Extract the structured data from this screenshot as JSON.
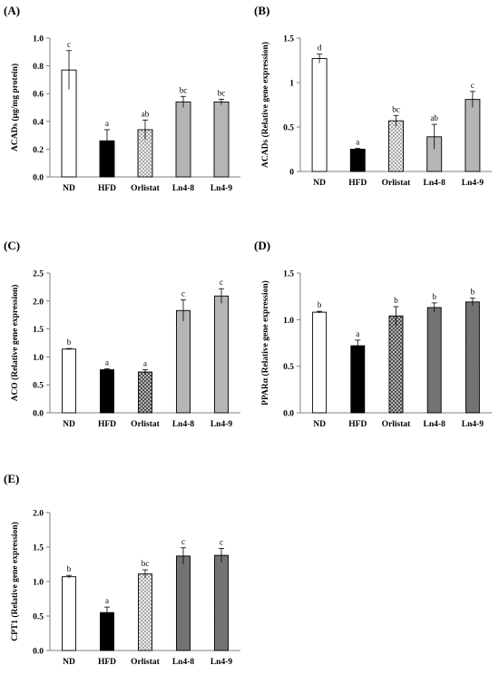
{
  "chart_data": [
    {
      "panel": "(A)",
      "type": "bar",
      "ylabel": "ACADs (μg/mg protein)",
      "ylim": [
        0,
        1.0
      ],
      "yticks": [
        "0.0",
        "0.2",
        "0.4",
        "0.6",
        "0.8",
        "1.0"
      ],
      "categories": [
        "ND",
        "HFD",
        "Orlistat",
        "Ln4-8",
        "Ln4-9"
      ],
      "values": [
        0.77,
        0.26,
        0.34,
        0.54,
        0.54
      ],
      "errors": [
        0.14,
        0.08,
        0.07,
        0.04,
        0.02
      ],
      "letters": [
        "c",
        "a",
        "ab",
        "bc",
        "bc"
      ]
    },
    {
      "panel": "(B)",
      "type": "bar",
      "ylabel": "ACADs (Relative gene expression)",
      "ylim": [
        0,
        1.5
      ],
      "yticks": [
        "0",
        "0.5",
        "1",
        "1.5"
      ],
      "categories": [
        "ND",
        "HFD",
        "Orlistat",
        "Ln4-8",
        "Ln4-9"
      ],
      "values": [
        1.27,
        0.25,
        0.57,
        0.39,
        0.81
      ],
      "errors": [
        0.05,
        0.01,
        0.06,
        0.14,
        0.09
      ],
      "letters": [
        "d",
        "a",
        "bc",
        "ab",
        "c"
      ]
    },
    {
      "panel": "(C)",
      "type": "bar",
      "ylabel": "ACO (Relative gene expression)",
      "ylim": [
        0,
        2.5
      ],
      "yticks": [
        "0.0",
        "0.5",
        "1.0",
        "1.5",
        "2.0",
        "2.5"
      ],
      "categories": [
        "ND",
        "HFD",
        "Orlistat",
        "Ln4-8",
        "Ln4-9"
      ],
      "values": [
        1.14,
        0.77,
        0.73,
        1.83,
        2.09
      ],
      "errors": [
        0.01,
        0.02,
        0.04,
        0.19,
        0.13
      ],
      "letters": [
        "b",
        "a",
        "a",
        "c",
        "c"
      ]
    },
    {
      "panel": "(D)",
      "type": "bar",
      "ylabel": "PPARα (Relative gene expression)",
      "ylim": [
        0,
        1.5
      ],
      "yticks": [
        "0.0",
        "0.5",
        "1.0",
        "1.5"
      ],
      "categories": [
        "ND",
        "HFD",
        "Orlistat",
        "Ln4-8",
        "Ln4-9"
      ],
      "values": [
        1.08,
        0.72,
        1.04,
        1.13,
        1.19
      ],
      "errors": [
        0.01,
        0.06,
        0.1,
        0.05,
        0.04
      ],
      "letters": [
        "b",
        "a",
        "b",
        "b",
        "b"
      ]
    },
    {
      "panel": "(E)",
      "type": "bar",
      "ylabel": "CPT1 (Relative gene expression)",
      "ylim": [
        0,
        2.0
      ],
      "yticks": [
        "0.0",
        "0.5",
        "1.0",
        "1.5",
        "2.0"
      ],
      "categories": [
        "ND",
        "HFD",
        "Orlistat",
        "Ln4-8",
        "Ln4-9"
      ],
      "values": [
        1.07,
        0.55,
        1.11,
        1.37,
        1.38
      ],
      "errors": [
        0.02,
        0.08,
        0.06,
        0.12,
        0.1
      ],
      "letters": [
        "b",
        "a",
        "bc",
        "c",
        "c"
      ]
    }
  ],
  "bar_styles": [
    "white",
    "black",
    "crosshatch-light",
    "gray",
    "gray-hatch"
  ],
  "colors": {
    "bar_outline": "#000000",
    "hfd_fill": "#000000",
    "nd_fill": "#ffffff",
    "light_gray_fill": "#b5b5b5",
    "dark_gray_fill": "#7a7a7a",
    "axis": "#7f7f7f"
  }
}
